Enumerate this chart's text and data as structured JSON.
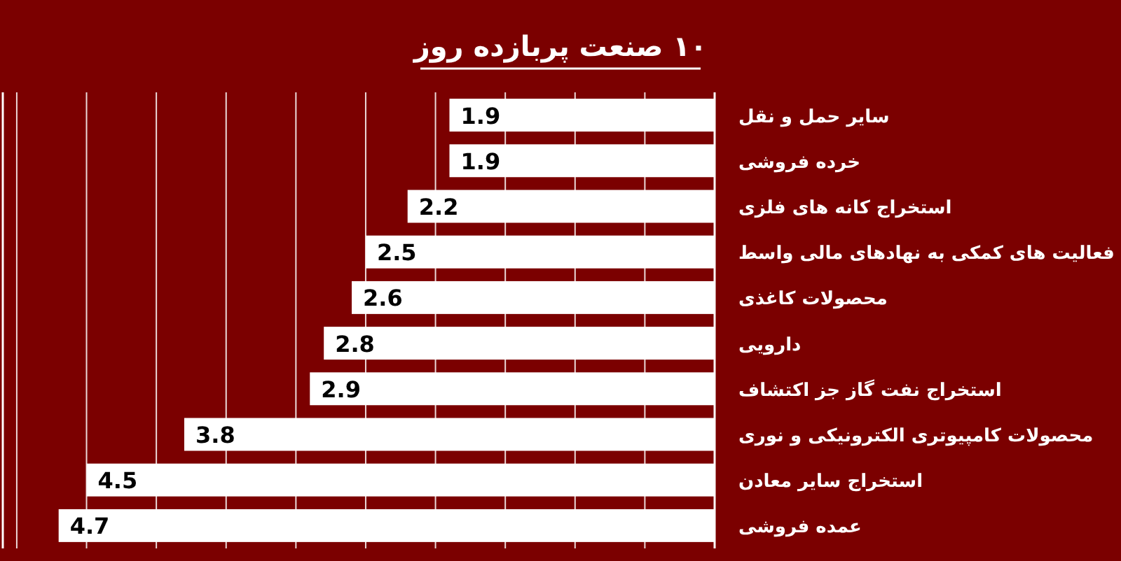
{
  "chart_data": {
    "type": "bar",
    "orientation": "horizontal",
    "title": "۱۰ صنعت پربازده روز",
    "categories": [
      "سایر حمل و نقل",
      "خرده فروشی",
      "استخراج کانه  های فلزی",
      "فعالیت های کمکی به نهادهای مالی واسط",
      "محصولات کاغذی",
      "دارویی",
      "استخراج نفت گاز جز اکتشاف",
      "محصولات کامپیوتری الکترونیکی و نوری",
      "استخراج سایر معادن",
      "عمده فروشی"
    ],
    "values": [
      1.9,
      1.9,
      2.2,
      2.5,
      2.6,
      2.8,
      2.9,
      3.8,
      4.5,
      4.7
    ],
    "color": "#ffffff",
    "data_labels": true,
    "xlim": [
      5.1,
      0
    ],
    "xticks": [
      {
        "value": 0,
        "label": null
      },
      {
        "value": 0.5,
        "label": null
      },
      {
        "value": 1,
        "label": null
      },
      {
        "value": 1.5,
        "label": null
      },
      {
        "value": 2,
        "label": null
      },
      {
        "value": 2.5,
        "label": null
      },
      {
        "value": 3,
        "label": null
      },
      {
        "value": 3.5,
        "label": null
      },
      {
        "value": 4,
        "label": null
      },
      {
        "value": 4.5,
        "label": null
      },
      {
        "value": 5,
        "label": null
      }
    ],
    "grid": "x"
  }
}
